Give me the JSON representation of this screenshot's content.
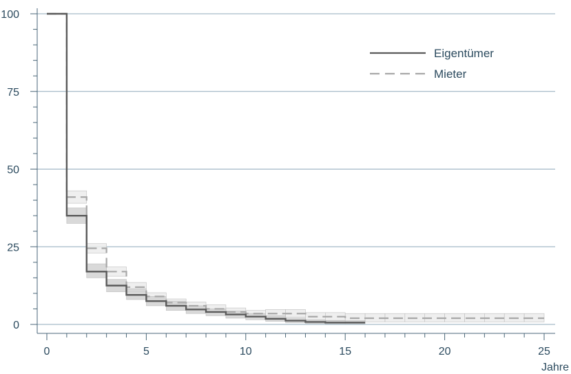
{
  "chart_data": {
    "type": "line",
    "title": "",
    "xlabel": "Jahre",
    "ylabel": "",
    "xlim": [
      0,
      25
    ],
    "ylim": [
      0,
      100
    ],
    "x_ticks": [
      0,
      5,
      10,
      15,
      20,
      25
    ],
    "y_ticks": [
      0,
      25,
      50,
      75,
      100
    ],
    "grid": "horizontal",
    "legend_position": "top-right",
    "step": true,
    "confidence_bands": true,
    "series": [
      {
        "name": "Eigentümer",
        "style": "solid",
        "color": "#5a5a5a",
        "band_color": "#d2d2d2",
        "x": [
          0,
          1,
          2,
          3,
          4,
          5,
          6,
          7,
          8,
          9,
          10,
          11,
          12,
          13,
          14,
          15,
          16
        ],
        "y": [
          100,
          35,
          17,
          12.5,
          9.5,
          7.5,
          6,
          4.8,
          4,
          3.2,
          2.5,
          1.8,
          1.2,
          0.8,
          0.6,
          0.6,
          0.6
        ],
        "lower": [
          100,
          32.5,
          15,
          10.5,
          8,
          6,
          4.5,
          3.5,
          2.8,
          2,
          1.5,
          1,
          0.5,
          0.3,
          0.2,
          0.2,
          0.2
        ],
        "upper": [
          100,
          37.5,
          19.5,
          14.5,
          11.5,
          9,
          7.5,
          6,
          5,
          4.3,
          3.5,
          2.8,
          2,
          1.5,
          1.2,
          1.2,
          1.2
        ]
      },
      {
        "name": "Mieter",
        "style": "dashed",
        "color": "#a8a8a8",
        "band_color": "#ececec",
        "x": [
          0,
          1,
          2,
          3,
          4,
          5,
          6,
          7,
          8,
          9,
          10,
          11,
          12,
          13,
          14,
          15,
          16,
          17,
          18,
          19,
          20,
          21,
          22,
          23,
          24,
          25
        ],
        "y": [
          100,
          41,
          24.5,
          17,
          12,
          9,
          7,
          6,
          5,
          4,
          3.5,
          3.5,
          3.5,
          2.5,
          2.5,
          2,
          2,
          2,
          2,
          2,
          2,
          2,
          2,
          2,
          2,
          2
        ],
        "lower": [
          100,
          39,
          23,
          15.5,
          10.5,
          7.8,
          5.8,
          5,
          4,
          3,
          2.5,
          2.3,
          2.3,
          1.3,
          1.3,
          0.8,
          0.8,
          0.8,
          0.8,
          0.8,
          0.8,
          0.8,
          0.8,
          0.8,
          0.8,
          0.8
        ],
        "upper": [
          100,
          43,
          26,
          18.5,
          13.5,
          10.2,
          8.2,
          7.2,
          6.3,
          5.3,
          4.5,
          4.8,
          4.8,
          3.8,
          3.8,
          3.5,
          3.5,
          3.5,
          3.5,
          3.5,
          3.5,
          3.5,
          3.5,
          3.5,
          3.5,
          3.5
        ]
      }
    ]
  }
}
